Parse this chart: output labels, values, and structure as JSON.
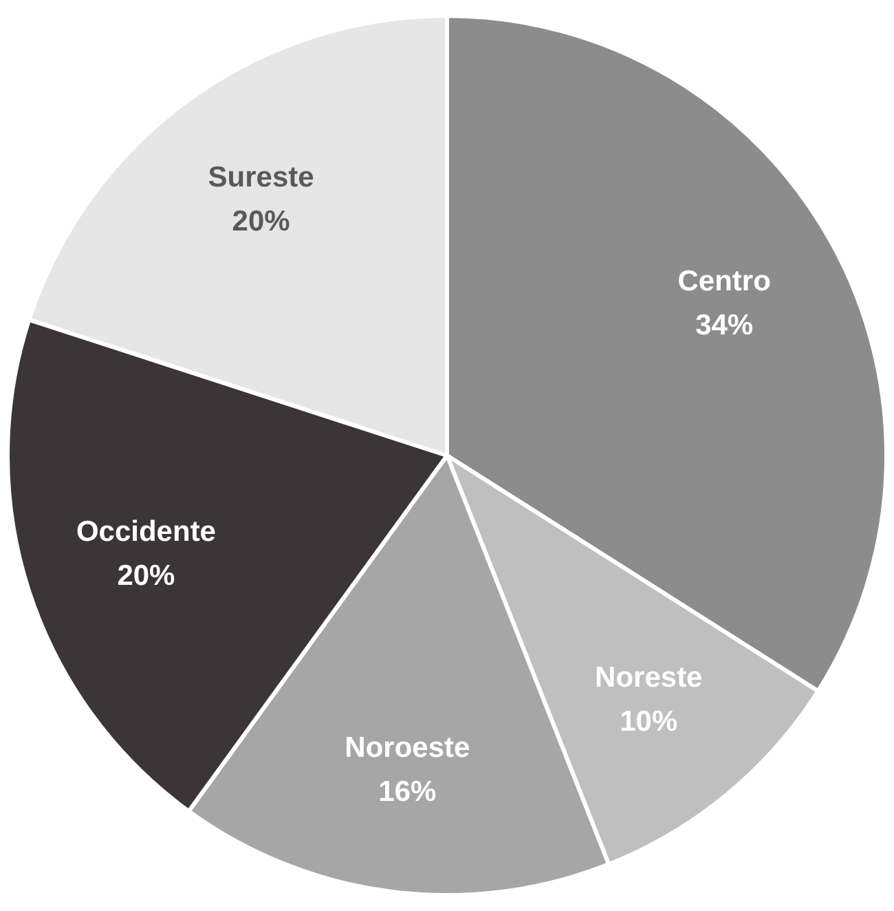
{
  "chart_data": {
    "type": "pie",
    "categories": [
      "Centro",
      "Noreste",
      "Noroeste",
      "Occidente",
      "Sureste"
    ],
    "values": [
      34,
      10,
      16,
      20,
      20
    ],
    "value_labels": [
      "34%",
      "10%",
      "16%",
      "20%",
      "20%"
    ],
    "colors": [
      "#8c8c8c",
      "#bfbfbf",
      "#a6a6a6",
      "#3b3538",
      "#e6e6e6"
    ],
    "legend": false
  }
}
